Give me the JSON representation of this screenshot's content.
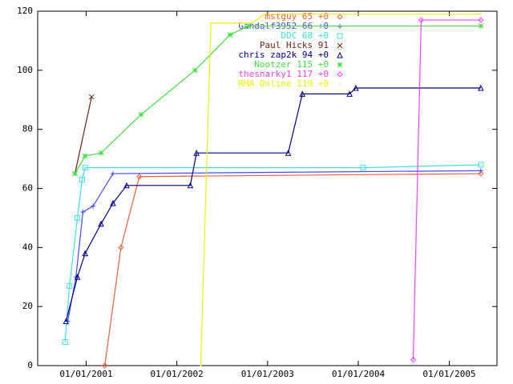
{
  "chart_data": {
    "type": "line",
    "xlim": [
      "2000-06-20",
      "2005-07-12"
    ],
    "xticks": [
      {
        "value": "2001-01-01",
        "label": "01/01/2001"
      },
      {
        "value": "2002-01-01",
        "label": "01/01/2002"
      },
      {
        "value": "2003-01-01",
        "label": "01/01/2003"
      },
      {
        "value": "2004-01-01",
        "label": "01/01/2004"
      },
      {
        "value": "2005-01-01",
        "label": "01/01/2005"
      }
    ],
    "ylim": [
      0,
      120
    ],
    "yticks": [
      0,
      20,
      40,
      60,
      80,
      100,
      120
    ],
    "legend": "top-right",
    "series": [
      {
        "name": "mstguy 65 +0",
        "color": "#e8603a",
        "marker": "diamond",
        "x": [
          "2001-03-17",
          "2001-05-21",
          "2001-08-03",
          "2005-05-08"
        ],
        "values": [
          0,
          40,
          64,
          65
        ]
      },
      {
        "name": "Gandalf3952 66 +0",
        "color": "#4848ff",
        "marker": "plus",
        "x": [
          "2000-10-19",
          "2000-11-21",
          "2000-12-19",
          "2001-01-29",
          "2001-04-19",
          "2005-05-08"
        ],
        "values": [
          15,
          30,
          52,
          54,
          65,
          66
        ]
      },
      {
        "name": "DDC 68 +0",
        "color": "#40e0e0",
        "marker": "square",
        "x": [
          "2000-10-08",
          "2000-10-26",
          "2000-11-27",
          "2000-12-16",
          "2000-12-28",
          "2004-01-20",
          "2005-05-08"
        ],
        "values": [
          8,
          27,
          50,
          63,
          67,
          67,
          68
        ]
      },
      {
        "name": "Paul Hicks 91",
        "color": "#702010",
        "marker": "cross",
        "x": [
          "2000-11-17",
          "2001-01-23"
        ],
        "values": [
          65,
          91
        ]
      },
      {
        "name": "chris zap2k 94 +0",
        "color": "#000080",
        "marker": "triangle",
        "x": [
          "2000-10-12",
          "2000-11-27",
          "2000-12-28",
          "2001-03-02",
          "2001-04-19",
          "2001-06-13",
          "2002-02-24",
          "2002-03-21",
          "2003-03-25",
          "2003-05-21",
          "2003-11-27",
          "2003-12-22",
          "2005-05-08"
        ],
        "values": [
          15,
          30,
          38,
          48,
          55,
          61,
          61,
          72,
          72,
          92,
          92,
          94,
          94
        ]
      },
      {
        "name": "Nootzer 115 +0",
        "color": "#40e040",
        "marker": "star",
        "x": [
          "2000-11-17",
          "2000-12-28",
          "2001-03-02",
          "2001-08-10",
          "2002-03-15",
          "2002-08-03",
          "2002-10-16",
          "2005-05-08"
        ],
        "values": [
          65,
          71,
          72,
          85,
          100,
          112,
          115,
          115
        ]
      },
      {
        "name": "thesnarky1 117 +0",
        "color": "#ff40ff",
        "marker": "diamond",
        "x": [
          "2004-08-09",
          "2004-09-10",
          "2005-05-08"
        ],
        "values": [
          2,
          117,
          117
        ]
      },
      {
        "name": "RMA Online 119 +0",
        "color": "#f0f000",
        "marker": "dot",
        "x": [
          "2002-04-07",
          "2002-05-18",
          "2002-11-01",
          "2002-12-19",
          "2005-05-08"
        ],
        "values": [
          0,
          116,
          116,
          119,
          119
        ]
      }
    ]
  }
}
